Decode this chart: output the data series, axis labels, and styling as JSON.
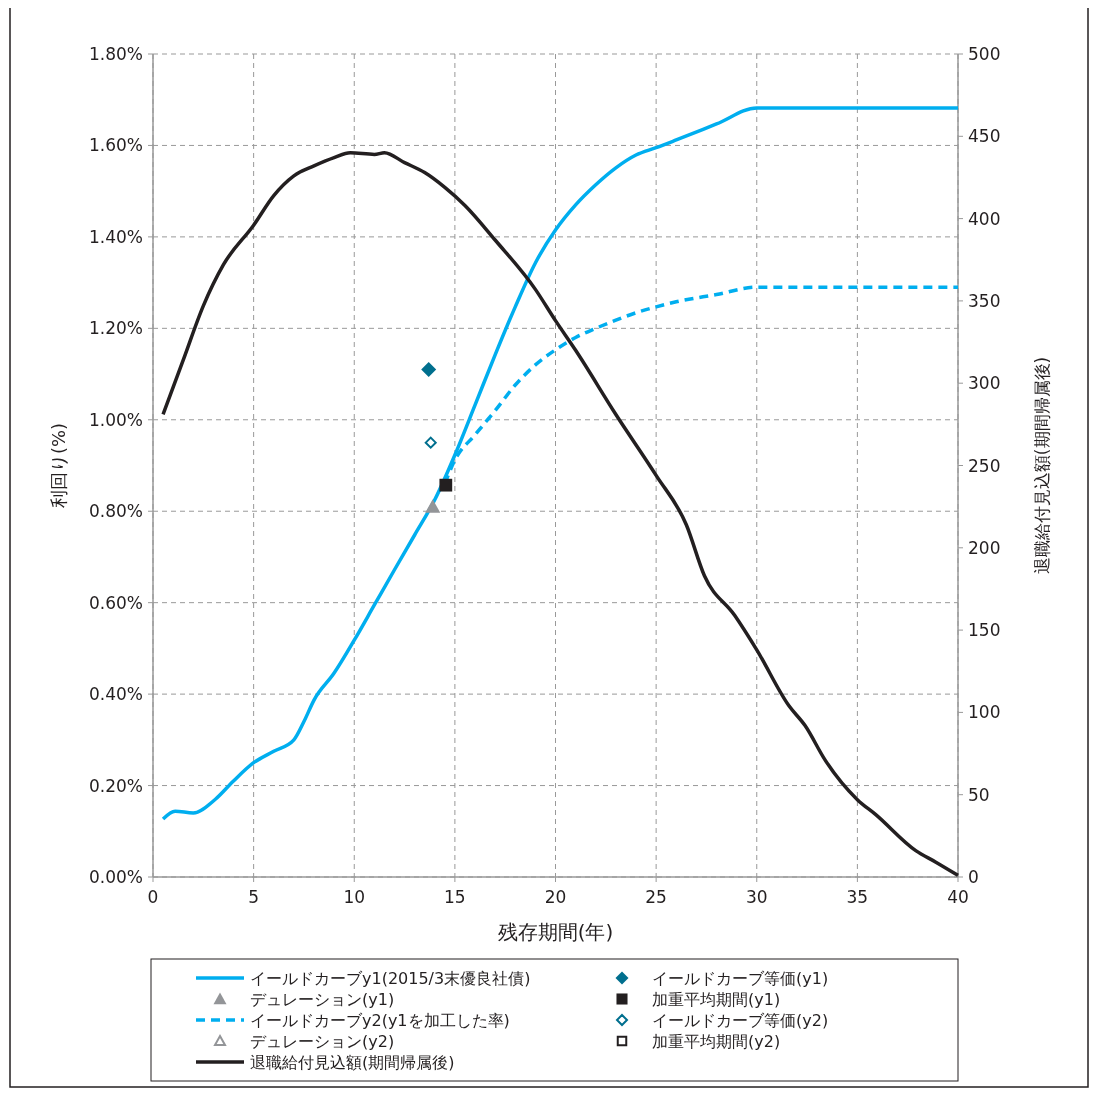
{
  "chart_data": {
    "type": "line",
    "xlabel": "残存期間(年)",
    "ylabel": "利回り(%)",
    "y2label": "退職給付見込額(期間帰属後)",
    "xlim": [
      0,
      40
    ],
    "xticks": [
      0,
      5,
      10,
      15,
      20,
      25,
      30,
      35,
      40
    ],
    "ylim": [
      0,
      1.8
    ],
    "yticks": [
      {
        "value": 0,
        "label": "0.00%"
      },
      {
        "value": 0.2,
        "label": "0.20%"
      },
      {
        "value": 0.4,
        "label": "0.40%"
      },
      {
        "value": 0.6,
        "label": "0.60%"
      },
      {
        "value": 0.8,
        "label": "0.80%"
      },
      {
        "value": 1.0,
        "label": "1.00%"
      },
      {
        "value": 1.2,
        "label": "1.20%"
      },
      {
        "value": 1.4,
        "label": "1.40%"
      },
      {
        "value": 1.6,
        "label": "1.60%"
      },
      {
        "value": 1.8,
        "label": "1.80%"
      }
    ],
    "y2lim": [
      0,
      500
    ],
    "y2ticks": [
      0,
      50,
      100,
      150,
      200,
      250,
      300,
      350,
      400,
      450,
      500
    ],
    "grid": true,
    "legend": "bottom",
    "series": [
      {
        "name": "イールドカーブy1(2015/3末優良社債)",
        "color": "#00aeef",
        "line_style": "solid",
        "marker": "none",
        "x": [
          0.5,
          1.1,
          2,
          3.1,
          4,
          5,
          6,
          7,
          7.5,
          8,
          9,
          10,
          11,
          12,
          13,
          14,
          15,
          16,
          17,
          18,
          19,
          20,
          21,
          22,
          23,
          24,
          25,
          26,
          28,
          30,
          40
        ],
        "values": [
          0.127,
          0.144,
          0.14,
          0.17,
          0.21,
          0.25,
          0.275,
          0.3,
          0.34,
          0.387,
          0.446,
          0.518,
          0.595,
          0.672,
          0.748,
          0.825,
          0.923,
          1.032,
          1.142,
          1.247,
          1.343,
          1.415,
          1.47,
          1.514,
          1.551,
          1.579,
          1.595,
          1.612,
          1.647,
          1.682,
          1.682
        ]
      },
      {
        "type": "scatter",
        "name": "デュレーション(y1)",
        "color": "#939598",
        "marker": "triangle",
        "x": [
          13.9
        ],
        "values": [
          0.81
        ]
      },
      {
        "name": "イールドカーブy2(y1を加工した率)",
        "color": "#00aeef",
        "line_style": "dashed",
        "marker": "none",
        "x": [
          14.5,
          15,
          16,
          17,
          18,
          19,
          20,
          21,
          22,
          23,
          24,
          25,
          26,
          28,
          30,
          40
        ],
        "values": [
          0.86,
          0.912,
          0.967,
          1.02,
          1.076,
          1.12,
          1.153,
          1.18,
          1.2,
          1.218,
          1.234,
          1.247,
          1.258,
          1.274,
          1.29,
          1.29
        ]
      },
      {
        "type": "scatter",
        "name": "デュレーション(y2)",
        "color": "#939598",
        "marker": "triangle",
        "values": [
          null
        ]
      },
      {
        "name": "退職給付見込額(期間帰属後)",
        "color": "#231f20",
        "line_style": "solid",
        "marker": "none",
        "axis": "y2",
        "x": [
          0.5,
          1.5,
          2.5,
          3.5,
          5,
          6,
          7,
          8,
          9,
          9.8,
          11,
          11.5,
          12.5,
          13.5,
          14.5,
          15.5,
          17,
          19,
          20,
          21,
          23,
          25,
          26.5,
          27.4,
          28.9,
          30,
          31.6,
          32.4,
          33.4,
          35,
          35.9,
          37.9,
          38.9,
          40
        ],
        "values": [
          281,
          314,
          347,
          372,
          396,
          414,
          426,
          432,
          437,
          440,
          439,
          440,
          434,
          428,
          419,
          408,
          387,
          357,
          338,
          320,
          281,
          244,
          214,
          183,
          159,
          138,
          104,
          92,
          71,
          47,
          38,
          16,
          9,
          1
        ]
      },
      {
        "type": "scatter",
        "name": "イールドカーブ等価(y1)",
        "color": "#006f8e",
        "marker": "diamond",
        "x": [
          13.7
        ],
        "values": [
          1.11
        ]
      },
      {
        "type": "scatter",
        "name": "加重平均期間(y1)",
        "color": "#231f20",
        "marker": "square",
        "x": [
          14.55
        ],
        "values": [
          0.857
        ]
      },
      {
        "type": "scatter",
        "name": "イールドカーブ等価(y2)",
        "color": "#006f8e",
        "marker": "diamond",
        "x": [
          13.8
        ],
        "values": [
          0.95
        ]
      },
      {
        "type": "scatter",
        "name": "加重平均期間(y2)",
        "color": "#231f20",
        "marker": "square",
        "values": [
          null
        ]
      }
    ]
  }
}
